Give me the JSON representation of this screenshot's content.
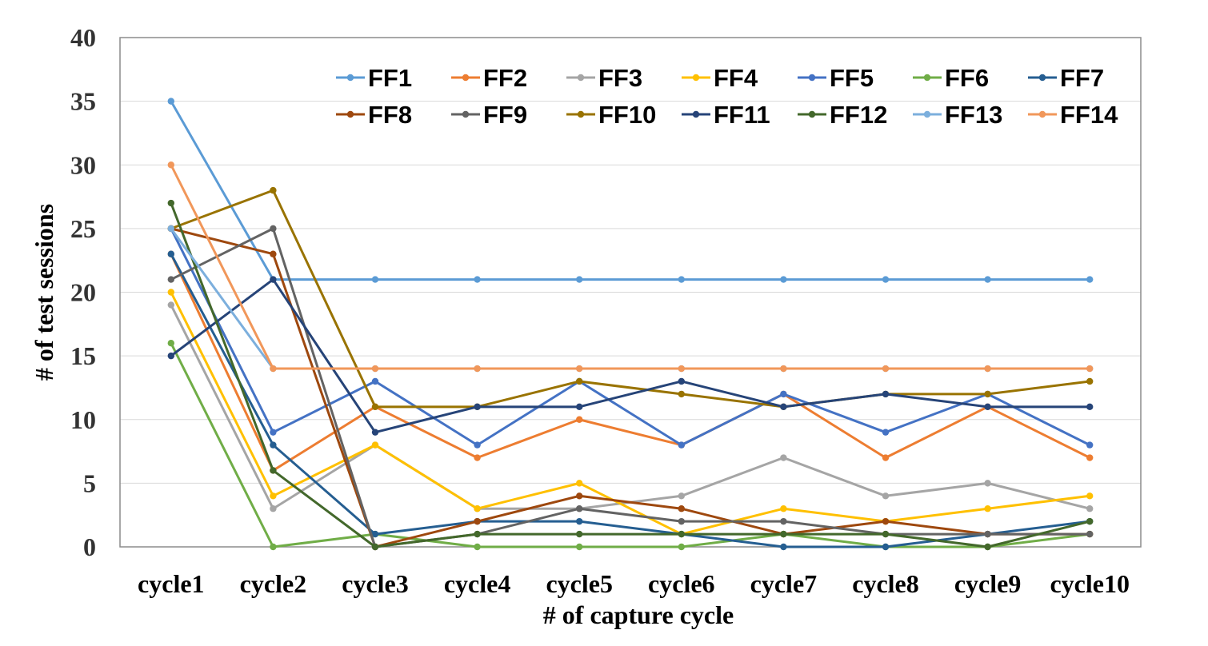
{
  "chart_data": {
    "type": "line",
    "title": "",
    "xlabel": "# of capture cycle",
    "ylabel": "# of test sessions",
    "categories": [
      "cycle1",
      "cycle2",
      "cycle3",
      "cycle4",
      "cycle5",
      "cycle6",
      "cycle7",
      "cycle8",
      "cycle9",
      "cycle10"
    ],
    "ylim": [
      0,
      40
    ],
    "yticks": [
      0,
      5,
      10,
      15,
      20,
      25,
      30,
      35,
      40
    ],
    "grid": true,
    "legend_position": "top",
    "series": [
      {
        "name": "FF1",
        "color": "#5B9BD5",
        "values": [
          35,
          21,
          21,
          21,
          21,
          21,
          21,
          21,
          21,
          21
        ]
      },
      {
        "name": "FF2",
        "color": "#ED7D31",
        "values": [
          23,
          6,
          11,
          7,
          10,
          8,
          12,
          7,
          11,
          7
        ]
      },
      {
        "name": "FF3",
        "color": "#A5A5A5",
        "values": [
          19,
          3,
          8,
          3,
          3,
          4,
          7,
          4,
          5,
          3
        ]
      },
      {
        "name": "FF4",
        "color": "#FFC000",
        "values": [
          20,
          4,
          8,
          3,
          5,
          1,
          3,
          2,
          3,
          4
        ]
      },
      {
        "name": "FF5",
        "color": "#4472C4",
        "values": [
          25,
          9,
          13,
          8,
          13,
          8,
          12,
          9,
          12,
          8
        ]
      },
      {
        "name": "FF6",
        "color": "#70AD47",
        "values": [
          16,
          0,
          1,
          0,
          0,
          0,
          1,
          0,
          0,
          1
        ]
      },
      {
        "name": "FF7",
        "color": "#255E91",
        "values": [
          23,
          8,
          1,
          2,
          2,
          1,
          0,
          0,
          1,
          2
        ]
      },
      {
        "name": "FF8",
        "color": "#9E480E",
        "values": [
          25,
          23,
          0,
          2,
          4,
          3,
          1,
          2,
          1,
          1
        ]
      },
      {
        "name": "FF9",
        "color": "#636363",
        "values": [
          21,
          25,
          0,
          1,
          3,
          2,
          2,
          1,
          1,
          1
        ]
      },
      {
        "name": "FF10",
        "color": "#997300",
        "values": [
          25,
          28,
          11,
          11,
          13,
          12,
          11,
          12,
          12,
          13
        ]
      },
      {
        "name": "FF11",
        "color": "#264478",
        "values": [
          15,
          21,
          9,
          11,
          11,
          13,
          11,
          12,
          11,
          11
        ]
      },
      {
        "name": "FF12",
        "color": "#43682B",
        "values": [
          27,
          6,
          0,
          1,
          1,
          1,
          1,
          1,
          0,
          2
        ]
      },
      {
        "name": "FF13",
        "color": "#7CAFDD",
        "values": [
          25,
          14,
          14,
          14,
          14,
          14,
          14,
          14,
          14,
          14
        ]
      },
      {
        "name": "FF14",
        "color": "#F1975A",
        "values": [
          30,
          14,
          14,
          14,
          14,
          14,
          14,
          14,
          14,
          14
        ]
      }
    ]
  }
}
